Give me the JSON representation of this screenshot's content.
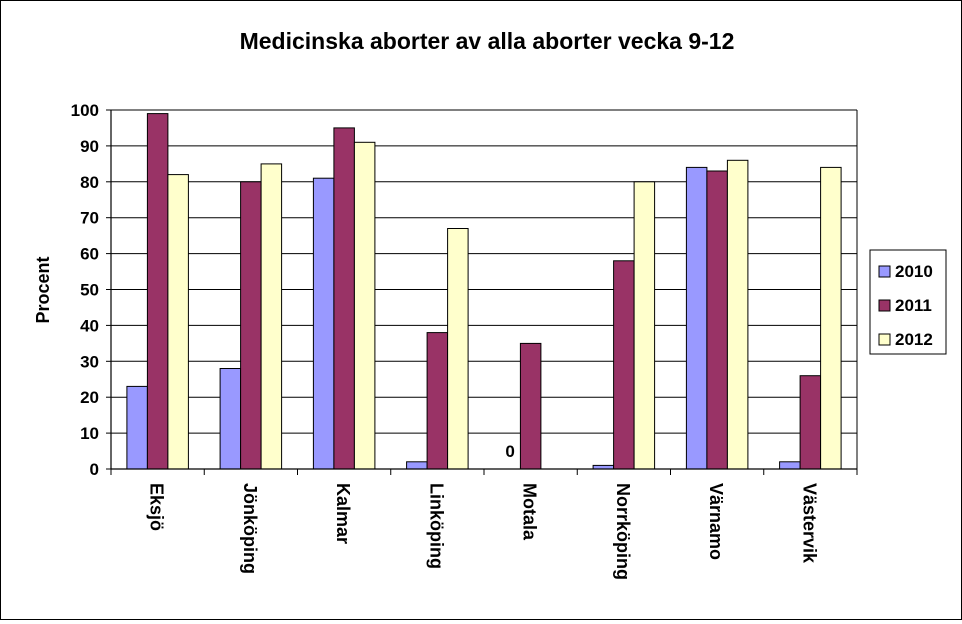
{
  "chart_data": {
    "type": "bar",
    "title": "Medicinska aborter av alla aborter vecka 9-12",
    "ylabel": "Procent",
    "xlabel": "",
    "ylim": [
      0,
      100
    ],
    "yticks": [
      0,
      10,
      20,
      30,
      40,
      50,
      60,
      70,
      80,
      90,
      100
    ],
    "grid": "horizontal",
    "legend_position": "right",
    "categories": [
      "Eksjö",
      "Jönköping",
      "Kalmar",
      "Linköping",
      "Motala",
      "Norrköping",
      "Värnamo",
      "Västervik"
    ],
    "series": [
      {
        "name": "2010",
        "color": "#9999FF",
        "values": [
          23,
          28,
          81,
          2,
          0,
          1,
          84,
          2
        ]
      },
      {
        "name": "2011",
        "color": "#993366",
        "values": [
          99,
          80,
          95,
          38,
          35,
          58,
          83,
          26
        ]
      },
      {
        "name": "2012",
        "color": "#FFFFCC",
        "values": [
          82,
          85,
          91,
          67,
          null,
          80,
          86,
          84
        ]
      }
    ],
    "annotations": [
      {
        "category": "Motala",
        "series": "2010",
        "text": "0"
      }
    ]
  }
}
